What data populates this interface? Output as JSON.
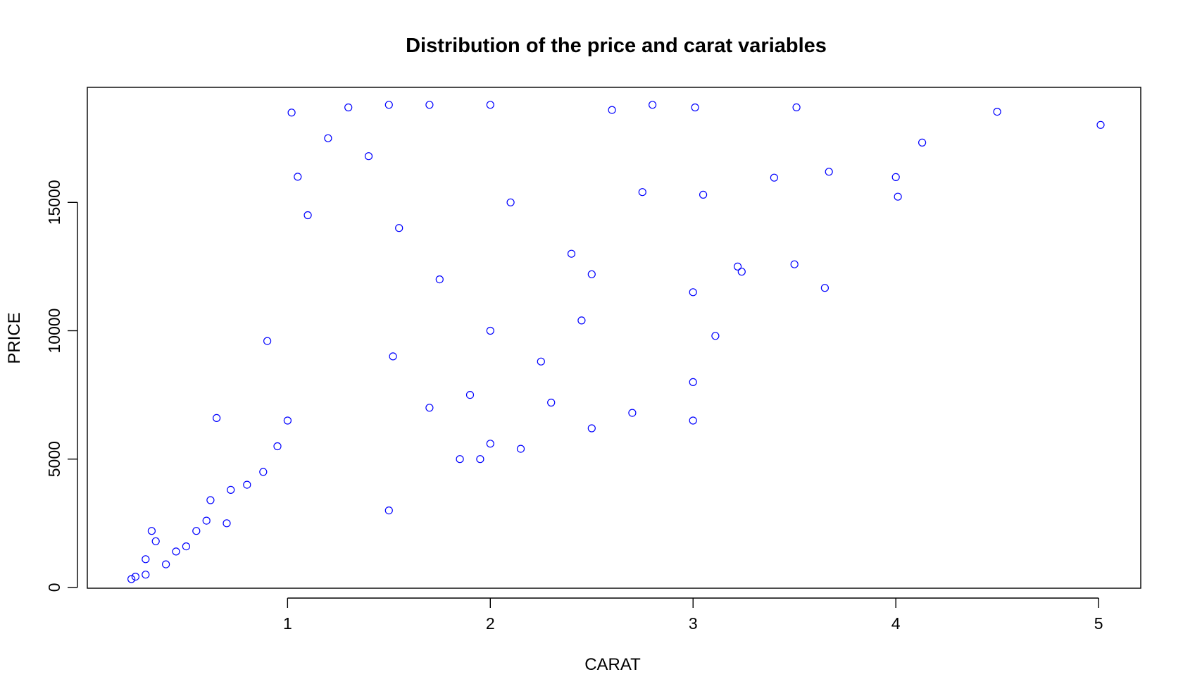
{
  "chart_data": {
    "type": "scatter",
    "title": "Distribution of the price and carat variables",
    "xlabel": "CARAT",
    "ylabel": "PRICE",
    "xlim": [
      0.2,
      5.01
    ],
    "ylim": [
      326,
      18823
    ],
    "x_ticks": [
      1,
      2,
      3,
      4,
      5
    ],
    "x_tick_labels": [
      "1",
      "2",
      "3",
      "4",
      "5"
    ],
    "y_ticks": [
      0,
      5000,
      10000,
      15000
    ],
    "y_tick_labels": [
      "0",
      "5000",
      "10000",
      "15000"
    ],
    "grid": false,
    "legend": "none",
    "marker": "open-circle",
    "color": "#0000ff",
    "points": [
      [
        0.23,
        326
      ],
      [
        0.25,
        420
      ],
      [
        0.3,
        500
      ],
      [
        0.3,
        1100
      ],
      [
        0.33,
        2200
      ],
      [
        0.35,
        1800
      ],
      [
        0.4,
        900
      ],
      [
        0.45,
        1400
      ],
      [
        0.5,
        1600
      ],
      [
        0.55,
        2200
      ],
      [
        0.6,
        2600
      ],
      [
        0.62,
        3400
      ],
      [
        0.65,
        6600
      ],
      [
        0.7,
        2500
      ],
      [
        0.72,
        3800
      ],
      [
        0.8,
        4000
      ],
      [
        0.88,
        4500
      ],
      [
        0.9,
        9600
      ],
      [
        0.95,
        5500
      ],
      [
        1.0,
        6500
      ],
      [
        1.02,
        18500
      ],
      [
        1.05,
        16000
      ],
      [
        1.1,
        14500
      ],
      [
        1.2,
        17500
      ],
      [
        1.3,
        18700
      ],
      [
        1.4,
        16800
      ],
      [
        1.5,
        18800
      ],
      [
        1.5,
        3000
      ],
      [
        1.52,
        9000
      ],
      [
        1.55,
        14000
      ],
      [
        1.7,
        18800
      ],
      [
        1.7,
        7000
      ],
      [
        1.75,
        12000
      ],
      [
        1.85,
        5000
      ],
      [
        1.9,
        7500
      ],
      [
        1.95,
        5000
      ],
      [
        2.0,
        18800
      ],
      [
        2.0,
        10000
      ],
      [
        2.0,
        5600
      ],
      [
        2.1,
        15000
      ],
      [
        2.15,
        5400
      ],
      [
        2.25,
        8800
      ],
      [
        2.3,
        7200
      ],
      [
        2.4,
        13000
      ],
      [
        2.45,
        10400
      ],
      [
        2.5,
        6200
      ],
      [
        2.5,
        12200
      ],
      [
        2.6,
        18600
      ],
      [
        2.7,
        6800
      ],
      [
        2.75,
        15400
      ],
      [
        2.8,
        18800
      ],
      [
        3.0,
        6500
      ],
      [
        3.0,
        8000
      ],
      [
        3.0,
        11500
      ],
      [
        3.01,
        18700
      ],
      [
        3.05,
        15300
      ],
      [
        3.11,
        9800
      ],
      [
        3.22,
        12500
      ],
      [
        3.24,
        12300
      ],
      [
        3.4,
        15964
      ],
      [
        3.5,
        12587
      ],
      [
        3.51,
        18701
      ],
      [
        3.65,
        11668
      ],
      [
        3.67,
        16193
      ],
      [
        4.0,
        15984
      ],
      [
        4.01,
        15223
      ],
      [
        4.13,
        17329
      ],
      [
        4.5,
        18531
      ],
      [
        5.01,
        18018
      ]
    ]
  }
}
